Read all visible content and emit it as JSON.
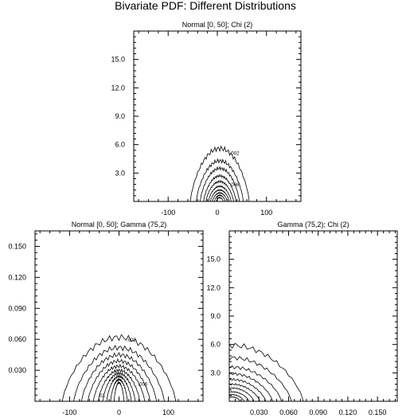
{
  "title": "Bivariate PDF: Different Distributions",
  "chart_data": [
    {
      "type": "contour",
      "subtitle": "Normal [0, 50]; Chi (2)",
      "xlim": [
        -170,
        170
      ],
      "ylim": [
        0,
        18
      ],
      "xticks": [
        -100,
        0,
        100
      ],
      "xtick_labels": [
        "-100",
        "0",
        "100"
      ],
      "yticks": [
        3,
        6,
        9,
        12,
        15
      ],
      "ytick_labels": [
        "3.0",
        "6.0",
        "9.0",
        "12.0",
        "15.0"
      ],
      "peak": {
        "x": 5,
        "y": 0.6
      },
      "levels": [
        {
          "hx": 60,
          "top": 5.6
        },
        {
          "hx": 48,
          "top": 4.3
        },
        {
          "hx": 40,
          "top": 3.5
        },
        {
          "hx": 33,
          "top": 2.7
        },
        {
          "hx": 28,
          "top": 2.1
        },
        {
          "hx": 23,
          "top": 1.6
        },
        {
          "hx": 19,
          "top": 1.2
        },
        {
          "hx": 15,
          "top": 0.9
        },
        {
          "hx": 11,
          "top": 0.65
        },
        {
          "hx": 7,
          "top": 0.4
        }
      ],
      "labels": [
        {
          "text": ".002",
          "x": 35,
          "y": 4.9
        },
        {
          "text": ".006",
          "x": 35,
          "y": 1.6
        }
      ]
    },
    {
      "type": "contour",
      "subtitle": "Normal [0, 50]; Gamma (75,2)",
      "xlim": [
        -170,
        170
      ],
      "ylim": [
        0,
        0.165
      ],
      "xticks": [
        -100,
        0,
        100
      ],
      "xtick_labels": [
        "-100",
        "0",
        "100"
      ],
      "yticks": [
        0.03,
        0.06,
        0.09,
        0.12,
        0.15
      ],
      "ytick_labels": [
        "0.030",
        "0.060",
        "0.090",
        "0.120",
        "0.150"
      ],
      "peak": {
        "x": 0,
        "y": 0.015
      },
      "levels": [
        {
          "hx": 115,
          "top": 0.062
        },
        {
          "hx": 92,
          "top": 0.052
        },
        {
          "hx": 76,
          "top": 0.045
        },
        {
          "hx": 63,
          "top": 0.039
        },
        {
          "hx": 52,
          "top": 0.034
        },
        {
          "hx": 42,
          "top": 0.03
        },
        {
          "hx": 33,
          "top": 0.027
        },
        {
          "hx": 25,
          "top": 0.024
        },
        {
          "hx": 17,
          "top": 0.021
        },
        {
          "hx": 10,
          "top": 0.018
        }
      ],
      "labels": [
        {
          "text": ".002",
          "x": 25,
          "y": 0.058
        },
        {
          "text": ".006",
          "x": 48,
          "y": 0.015
        },
        {
          "text": ".01",
          "x": -35,
          "y": 0.004
        }
      ]
    },
    {
      "type": "contour",
      "subtitle": "Gamma (75,2); Chi (2)",
      "xlim": [
        0,
        0.17
      ],
      "ylim": [
        0,
        18
      ],
      "xticks": [
        0.03,
        0.06,
        0.09,
        0.12,
        0.15
      ],
      "xtick_labels": [
        "0.030",
        "0.060",
        "0.090",
        "0.120",
        "0.150"
      ],
      "yticks": [
        3,
        6,
        9,
        12,
        15
      ],
      "ytick_labels": [
        "3.0",
        "6.0",
        "9.0",
        "12.0",
        "15.0"
      ],
      "peak": {
        "x": 0.003,
        "y": 0.3
      },
      "levels": [
        {
          "hx": 0.072,
          "top": 5.9
        },
        {
          "hx": 0.06,
          "top": 4.6
        },
        {
          "hx": 0.05,
          "top": 3.6
        },
        {
          "hx": 0.041,
          "top": 2.9
        },
        {
          "hx": 0.034,
          "top": 2.3
        },
        {
          "hx": 0.028,
          "top": 1.8
        },
        {
          "hx": 0.022,
          "top": 1.4
        },
        {
          "hx": 0.017,
          "top": 1.0
        },
        {
          "hx": 0.012,
          "top": 0.7
        },
        {
          "hx": 0.008,
          "top": 0.45
        }
      ],
      "labels": []
    }
  ]
}
